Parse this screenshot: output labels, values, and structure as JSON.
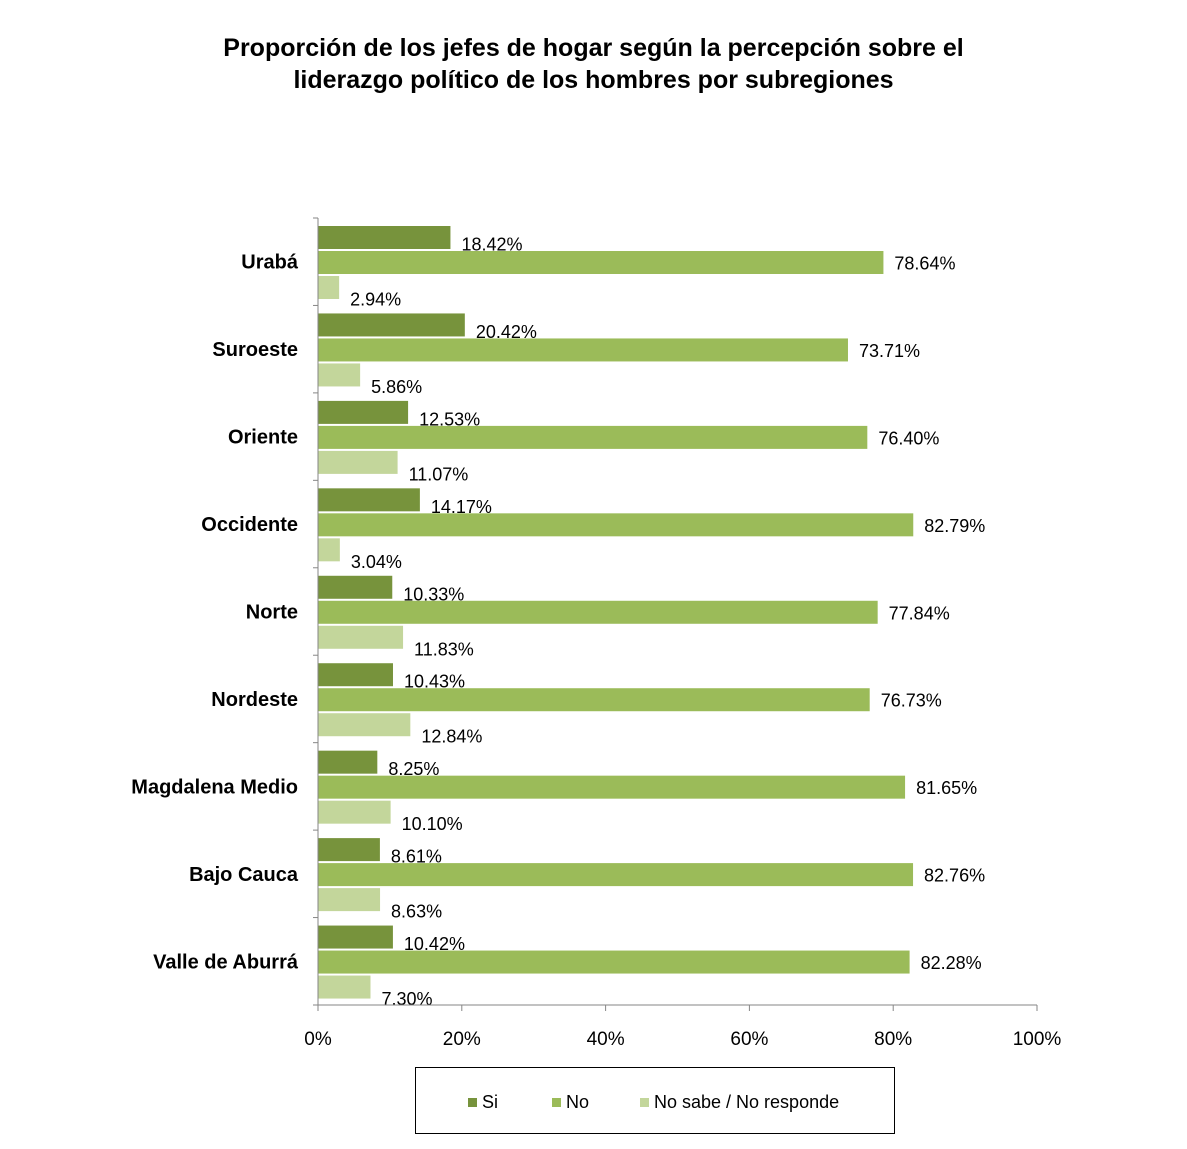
{
  "chart_data": {
    "type": "bar",
    "orientation": "horizontal",
    "title_lines": [
      "Proporción de los  jefes de hogar según la percepción sobre el",
      "liderazgo político de los hombres por subregiones"
    ],
    "categories": [
      "Urabá",
      "Suroeste",
      "Oriente",
      "Occidente",
      "Norte",
      "Nordeste",
      "Magdalena Medio",
      "Bajo Cauca",
      "Valle de Aburrá"
    ],
    "series": [
      {
        "name": "Si",
        "color": "#77933c",
        "values": [
          18.42,
          20.42,
          12.53,
          14.17,
          10.33,
          10.43,
          8.25,
          8.61,
          10.42
        ],
        "labels": [
          "18.42%",
          "20.42%",
          "12.53%",
          "14.17%",
          "10.33%",
          "10.43%",
          "8.25%",
          "8.61%",
          "10.42%"
        ]
      },
      {
        "name": "No",
        "color": "#9bbb59",
        "values": [
          78.64,
          73.71,
          76.4,
          82.79,
          77.84,
          76.73,
          81.65,
          82.76,
          82.28
        ],
        "labels": [
          "78.64%",
          "73.71%",
          "76.40%",
          "82.79%",
          "77.84%",
          "76.73%",
          "81.65%",
          "82.76%",
          "82.28%"
        ]
      },
      {
        "name": "No sabe / No responde",
        "color": "#c3d69b",
        "values": [
          2.94,
          5.86,
          11.07,
          3.04,
          11.83,
          12.84,
          10.1,
          8.63,
          7.3
        ],
        "labels": [
          "2.94%",
          "5.86%",
          "11.07%",
          "3.04%",
          "11.83%",
          "12.84%",
          "10.10%",
          "8.63%",
          "7.30%"
        ]
      }
    ],
    "x_ticks": [
      "0%",
      "20%",
      "40%",
      "60%",
      "80%",
      "100%"
    ],
    "xlim": [
      0,
      100
    ],
    "grid": false,
    "legend_position": "bottom"
  }
}
